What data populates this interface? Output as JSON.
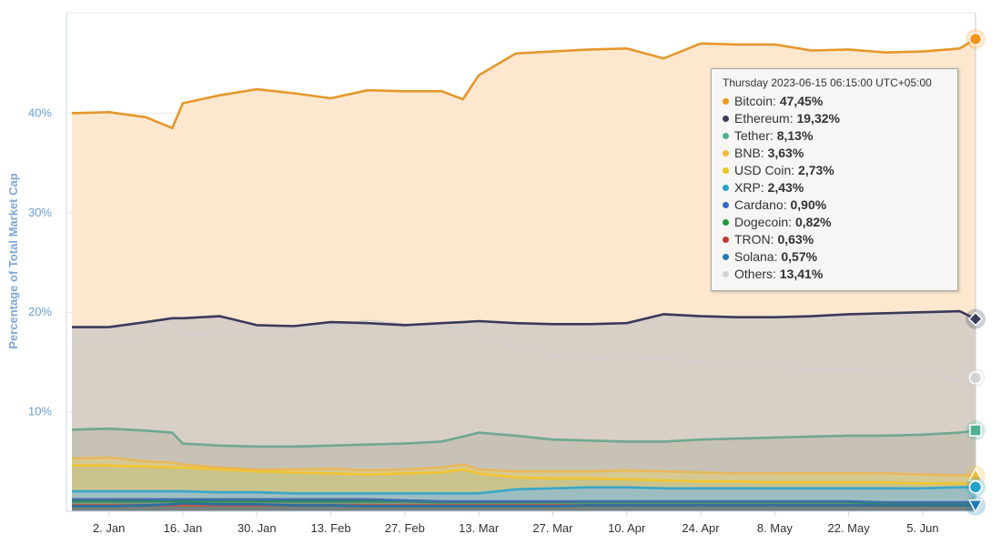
{
  "chart_data": {
    "type": "area",
    "stacked": false,
    "ylabel": "Percentage of Total Market Cap",
    "xlabel": "",
    "ylim": [
      0,
      50
    ],
    "yticks": [
      {
        "value": 10,
        "label": "10%"
      },
      {
        "value": 20,
        "label": "20%"
      },
      {
        "value": 30,
        "label": "30%"
      },
      {
        "value": 40,
        "label": "40%"
      }
    ],
    "x_ticks": [
      "2. Jan",
      "16. Jan",
      "30. Jan",
      "13. Feb",
      "27. Feb",
      "13. Mar",
      "27. Mar",
      "10. Apr",
      "24. Apr",
      "8. May",
      "22. May",
      "5. Jun"
    ],
    "x_range": [
      "2022-12-26",
      "2023-06-15"
    ],
    "grid": "horizontal",
    "x": [
      "2022-12-26",
      "2023-01-02",
      "2023-01-09",
      "2023-01-14",
      "2023-01-16",
      "2023-01-23",
      "2023-01-30",
      "2023-02-06",
      "2023-02-13",
      "2023-02-20",
      "2023-02-27",
      "2023-03-06",
      "2023-03-10",
      "2023-03-13",
      "2023-03-20",
      "2023-03-27",
      "2023-04-03",
      "2023-04-10",
      "2023-04-17",
      "2023-04-24",
      "2023-05-01",
      "2023-05-08",
      "2023-05-15",
      "2023-05-22",
      "2023-05-29",
      "2023-06-05",
      "2023-06-12",
      "2023-06-15"
    ],
    "series": [
      {
        "name": "Bitcoin",
        "color": "#f7931a",
        "line": "#e5972b",
        "fill": "#fde8cf",
        "values": [
          40.0,
          40.1,
          39.6,
          38.5,
          41.0,
          41.8,
          42.4,
          42.0,
          41.5,
          42.3,
          42.2,
          42.2,
          41.4,
          43.8,
          46.0,
          46.2,
          46.4,
          46.5,
          45.5,
          47.0,
          46.9,
          46.9,
          46.3,
          46.4,
          46.1,
          46.2,
          46.5,
          47.45
        ]
      },
      {
        "name": "Ethereum",
        "color": "#3c3c5d",
        "line": "#3a3a5c",
        "fill": "#d8cfc7",
        "values": [
          18.5,
          18.5,
          19.0,
          19.4,
          19.4,
          19.6,
          18.7,
          18.6,
          19.0,
          18.9,
          18.7,
          18.9,
          19.0,
          19.1,
          18.9,
          18.8,
          18.8,
          18.9,
          19.8,
          19.6,
          19.5,
          19.5,
          19.6,
          19.8,
          19.9,
          20.0,
          20.1,
          19.32
        ]
      },
      {
        "name": "Tether",
        "color": "#50af95",
        "line": "#6ea891",
        "fill": "#c7c2b5",
        "values": [
          8.2,
          8.3,
          8.1,
          7.9,
          6.8,
          6.6,
          6.5,
          6.5,
          6.6,
          6.7,
          6.8,
          7.0,
          7.5,
          7.9,
          7.6,
          7.2,
          7.1,
          7.0,
          7.0,
          7.2,
          7.3,
          7.4,
          7.5,
          7.6,
          7.6,
          7.7,
          7.9,
          8.13
        ]
      },
      {
        "name": "BNB",
        "color": "#f3ba2f",
        "line": "#e8b85a",
        "fill": "#d6c892",
        "values": [
          5.3,
          5.4,
          5.0,
          4.9,
          4.7,
          4.4,
          4.2,
          4.2,
          4.3,
          4.1,
          4.2,
          4.4,
          4.7,
          4.2,
          4.0,
          4.0,
          4.0,
          4.1,
          4.0,
          3.9,
          3.8,
          3.8,
          3.8,
          3.8,
          3.8,
          3.7,
          3.6,
          3.63
        ]
      },
      {
        "name": "USD Coin",
        "color": "#f0c419",
        "line": "#f2c530",
        "fill": "#c9c38e",
        "values": [
          4.6,
          4.6,
          4.5,
          4.4,
          4.4,
          4.2,
          4.0,
          3.9,
          3.8,
          3.7,
          3.8,
          3.9,
          4.2,
          3.8,
          3.4,
          3.3,
          3.3,
          3.2,
          3.1,
          3.0,
          3.0,
          2.9,
          2.9,
          2.9,
          2.9,
          2.8,
          2.8,
          2.73
        ]
      },
      {
        "name": "XRP",
        "color": "#23a2c9",
        "line": "#3aa6c6",
        "fill": "#9dbec1",
        "values": [
          2.0,
          2.0,
          2.0,
          2.0,
          2.0,
          1.9,
          1.9,
          1.8,
          1.8,
          1.8,
          1.8,
          1.8,
          1.8,
          1.8,
          2.2,
          2.3,
          2.4,
          2.4,
          2.3,
          2.3,
          2.3,
          2.3,
          2.3,
          2.3,
          2.3,
          2.3,
          2.4,
          2.43
        ]
      },
      {
        "name": "Cardano",
        "color": "#3468d1",
        "line": "#3f6eaa",
        "fill": "#8fa3a0",
        "values": [
          1.2,
          1.2,
          1.2,
          1.2,
          1.2,
          1.2,
          1.2,
          1.2,
          1.2,
          1.2,
          1.1,
          1.0,
          1.0,
          1.0,
          1.0,
          1.0,
          1.0,
          1.0,
          1.0,
          1.0,
          1.0,
          1.0,
          1.0,
          1.0,
          0.9,
          0.9,
          0.9,
          0.9
        ]
      },
      {
        "name": "Dogecoin",
        "color": "#1a9a3a",
        "line": "#2e8b57",
        "fill": "#7f9489",
        "values": [
          1.0,
          1.0,
          1.0,
          1.0,
          1.0,
          1.0,
          1.0,
          1.0,
          1.0,
          1.0,
          1.0,
          0.9,
          0.9,
          0.9,
          0.9,
          0.9,
          0.9,
          0.9,
          0.9,
          0.9,
          0.9,
          0.9,
          0.9,
          0.9,
          0.8,
          0.8,
          0.8,
          0.82
        ]
      },
      {
        "name": "TRON",
        "color": "#c0392b",
        "line": "#b9574b",
        "fill": "#74807b",
        "values": [
          0.6,
          0.6,
          0.6,
          0.6,
          0.6,
          0.6,
          0.6,
          0.6,
          0.6,
          0.6,
          0.6,
          0.6,
          0.6,
          0.6,
          0.6,
          0.6,
          0.6,
          0.6,
          0.6,
          0.6,
          0.6,
          0.6,
          0.6,
          0.6,
          0.6,
          0.6,
          0.6,
          0.63
        ]
      },
      {
        "name": "Solana",
        "color": "#1f7ab8",
        "line": "#2a6f9e",
        "fill": "#6a7c80",
        "values": [
          0.5,
          0.5,
          0.6,
          0.7,
          0.8,
          0.7,
          0.7,
          0.6,
          0.6,
          0.5,
          0.5,
          0.5,
          0.5,
          0.5,
          0.5,
          0.5,
          0.6,
          0.6,
          0.6,
          0.6,
          0.6,
          0.6,
          0.6,
          0.6,
          0.6,
          0.6,
          0.6,
          0.57
        ]
      },
      {
        "name": "Others",
        "color": "#d4d4d4",
        "line": "#d0d0d0",
        "fill": "none",
        "values": [
          17.4,
          17.2,
          17.5,
          19.3,
          17.6,
          17.8,
          17.8,
          18.3,
          18.6,
          19.2,
          18.8,
          18.5,
          18.4,
          17.5,
          16.5,
          15.7,
          15.3,
          15.4,
          15.3,
          15.1,
          14.8,
          14.5,
          14.3,
          14.3,
          14.1,
          14.0,
          13.1,
          13.41
        ]
      }
    ],
    "end_markers": [
      {
        "series": "Bitcoin",
        "shape": "circle"
      },
      {
        "series": "Ethereum",
        "shape": "diamond"
      },
      {
        "series": "Others",
        "shape": "circle"
      },
      {
        "series": "Tether",
        "shape": "square"
      },
      {
        "series": "BNB",
        "shape": "triangle"
      },
      {
        "series": "XRP",
        "shape": "circle"
      },
      {
        "series": "Solana",
        "shape": "triangle-down"
      }
    ]
  },
  "tooltip": {
    "header": "Thursday 2023-06-15 06:15:00 UTC+05:00",
    "rows": [
      {
        "name": "Bitcoin:",
        "value": "47,45%",
        "color": "#f7931a"
      },
      {
        "name": "Ethereum:",
        "value": "19,32%",
        "color": "#3c3c5d"
      },
      {
        "name": "Tether:",
        "value": "8,13%",
        "color": "#50af95"
      },
      {
        "name": "BNB:",
        "value": "3,63%",
        "color": "#f3ba2f"
      },
      {
        "name": "USD Coin:",
        "value": "2,73%",
        "color": "#f0c419"
      },
      {
        "name": "XRP:",
        "value": "2,43%",
        "color": "#23a2c9"
      },
      {
        "name": "Cardano:",
        "value": "0,90%",
        "color": "#3468d1"
      },
      {
        "name": "Dogecoin:",
        "value": "0,82%",
        "color": "#1a9a3a"
      },
      {
        "name": "TRON:",
        "value": "0,63%",
        "color": "#c0392b"
      },
      {
        "name": "Solana:",
        "value": "0,57%",
        "color": "#1f7ab8"
      },
      {
        "name": "Others:",
        "value": "13,41%",
        "color": "#d4d4d4"
      }
    ]
  }
}
